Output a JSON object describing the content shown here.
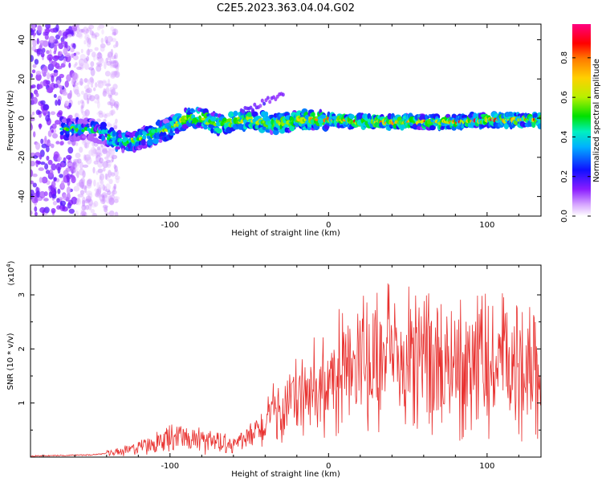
{
  "title": "C2E5.2023.363.04.04.G02",
  "chart_data": [
    {
      "type": "heatmap",
      "name": "spectrogram",
      "xlabel": "Height of straight line (km)",
      "ylabel": "Frequency (Hz)",
      "xlim": [
        -188,
        134
      ],
      "ylim": [
        -50,
        48
      ],
      "xticks": [
        -100,
        0,
        100
      ],
      "yticks": [
        -40,
        -20,
        0,
        20,
        40
      ],
      "xtick_labels": [
        "-100",
        "0",
        "100"
      ],
      "ytick_labels": [
        "-40",
        "-20",
        "0",
        "20",
        "40"
      ],
      "colorbar": {
        "label": "Normalized spectral amplitude",
        "range": [
          0,
          0.97
        ],
        "ticks": [
          0.0,
          0.2,
          0.4,
          0.6,
          0.8
        ],
        "tick_labels": [
          "0.0",
          "0.2",
          "0.4",
          "0.6",
          "0.8"
        ]
      },
      "ridge": {
        "x": [
          -188,
          -170,
          -150,
          -140,
          -133,
          -120,
          -110,
          -100,
          -90,
          -80,
          -70,
          -60,
          -50,
          -40,
          -30,
          -20,
          -10,
          0,
          20,
          40,
          60,
          80,
          100,
          120,
          134
        ],
        "freq": [
          -5,
          -5,
          -6,
          -8,
          -12,
          -11,
          -8,
          -5,
          0,
          0,
          -3,
          -2,
          -1,
          -2,
          -3,
          -1,
          -1,
          -1,
          -2,
          -2,
          -2,
          -2,
          -1,
          -1,
          -1
        ]
      }
    },
    {
      "type": "line",
      "name": "snr",
      "xlabel": "Height of straight line (km)",
      "ylabel": "SNR (10 * v/v)",
      "ylabel_scale_base": "(x10",
      "ylabel_scale_exp": "4",
      "ylabel_scale_close": ")",
      "xlim": [
        -188,
        134
      ],
      "ylim": [
        0,
        3.55
      ],
      "xticks": [
        -100,
        0,
        100
      ],
      "yticks": [
        1,
        2,
        3
      ],
      "xtick_labels": [
        "-100",
        "0",
        "100"
      ],
      "ytick_labels": [
        "1",
        "2",
        "3"
      ],
      "color": "#e8302e",
      "envelope": {
        "x": [
          -188,
          -150,
          -130,
          -120,
          -110,
          -100,
          -90,
          -80,
          -70,
          -60,
          -50,
          -40,
          -30,
          -20,
          -10,
          0,
          10,
          20,
          30,
          40,
          50,
          60,
          70,
          80,
          90,
          100,
          110,
          120,
          134
        ],
        "y": [
          0.02,
          0.04,
          0.1,
          0.18,
          0.28,
          0.35,
          0.32,
          0.28,
          0.25,
          0.25,
          0.35,
          0.6,
          0.85,
          1.05,
          1.15,
          1.3,
          1.5,
          1.65,
          1.75,
          1.8,
          1.7,
          1.75,
          1.75,
          1.8,
          1.75,
          1.7,
          1.65,
          1.7,
          1.75
        ]
      }
    }
  ]
}
